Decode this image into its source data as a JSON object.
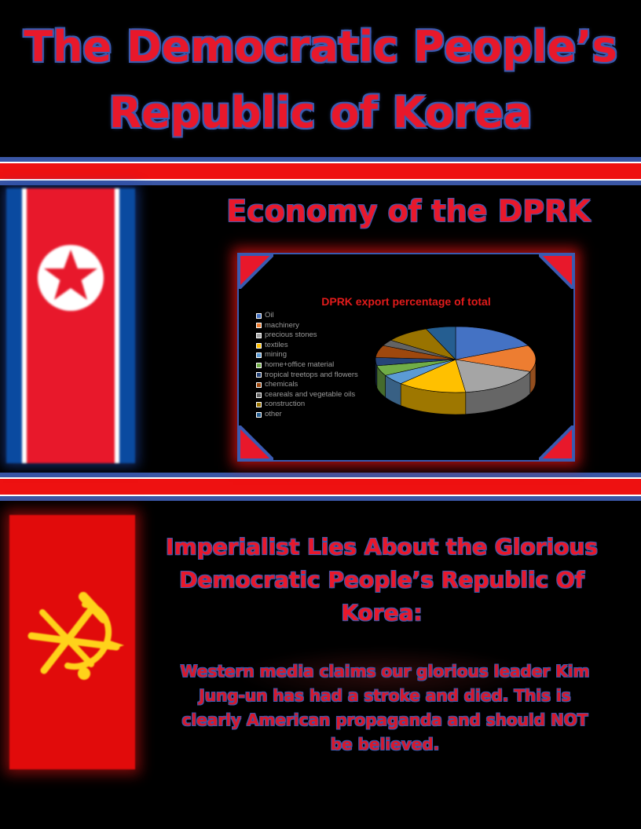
{
  "page": {
    "title_line1": "The Democratic People’s",
    "title_line2": "Republic of Korea"
  },
  "economy": {
    "heading": "Economy of the DPRK"
  },
  "chart_data": {
    "type": "pie",
    "title": "DPRK export percentage of total",
    "categories": [
      "Oil",
      "machinery",
      "precious stones",
      "textiles",
      "mining",
      "home+office material",
      "tropical treetops and flowers",
      "chemicals",
      "ceareals and vegetable oils",
      "construction",
      "other"
    ],
    "values": [
      18,
      13,
      17,
      14,
      5,
      5,
      4,
      6,
      3,
      9,
      6
    ],
    "colors": [
      "#4472c4",
      "#ed7d31",
      "#a5a5a5",
      "#ffc000",
      "#5b9bd5",
      "#70ad47",
      "#264478",
      "#9e480e",
      "#636363",
      "#997300",
      "#255e91"
    ],
    "legend": "left",
    "style": "3d"
  },
  "lies": {
    "heading_line1": "Imperialist Lies About the Glorious",
    "heading_line2": "Democratic People’s Republic Of",
    "heading_line3": "Korea:",
    "body_line1": "Western media claims our glorious leader Kim",
    "body_line2": "Jung-un has had a stroke and died. This is",
    "body_line3": "clearly American propaganda and should NOT",
    "body_line4": "be believed."
  },
  "colors": {
    "red": "#e8182b",
    "blue": "#3a5ab0",
    "gold": "#ffd21a"
  },
  "icons": {
    "flag_top": "north-korea-flag",
    "flag_bottom": "workers-party-flag"
  }
}
